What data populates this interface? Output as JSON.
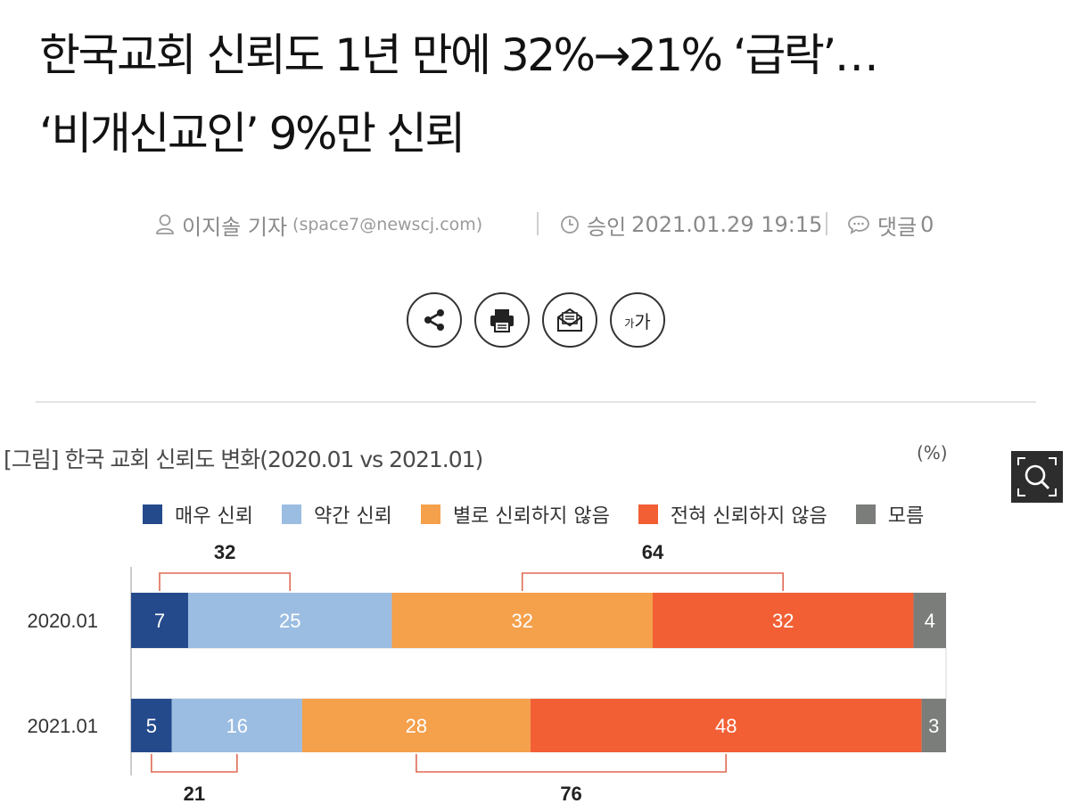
{
  "article": {
    "headline_line1": "한국교회 신뢰도 1년 만에 32%→21% ‘급락’…",
    "headline_line2": "‘비개신교인’ 9%만 신뢰",
    "byline": {
      "author": "이지솔 기자",
      "email": "(space7@newscj.com)",
      "approved_label": "승인",
      "approved_datetime": "2021.01.29 19:15",
      "comments_label": "댓글",
      "comments_count": "0"
    }
  },
  "toolbar": {
    "share_icon": "share-icon",
    "print_icon": "print-icon",
    "email_icon": "email-icon",
    "font_small": "가",
    "font_big": "가"
  },
  "figure": {
    "title": "[그림] 한국 교회 신뢰도 변화(2020.01 vs 2021.01)",
    "unit": "(%)",
    "zoom_icon": "search-icon"
  },
  "chart_data": {
    "type": "bar",
    "orientation": "horizontal",
    "stacked": true,
    "categories": [
      "2020.01",
      "2021.01"
    ],
    "series": [
      {
        "name": "매우 신뢰",
        "color": "#244a8c",
        "values": [
          7,
          5
        ]
      },
      {
        "name": "약간 신뢰",
        "color": "#9cbde2",
        "values": [
          25,
          16
        ]
      },
      {
        "name": "별로 신뢰하지 않음",
        "color": "#f5a04b",
        "values": [
          32,
          28
        ]
      },
      {
        "name": "전혀 신뢰하지 않음",
        "color": "#f25f35",
        "values": [
          32,
          48
        ]
      },
      {
        "name": "모름",
        "color": "#7b7d7a",
        "values": [
          4,
          3
        ]
      }
    ],
    "bracket_totals": {
      "2020.01": {
        "trust": "32",
        "distrust": "64"
      },
      "2021.01": {
        "trust": "21",
        "distrust": "76"
      }
    },
    "legend_position": "top",
    "xlim": [
      0,
      100
    ],
    "grid": false
  }
}
